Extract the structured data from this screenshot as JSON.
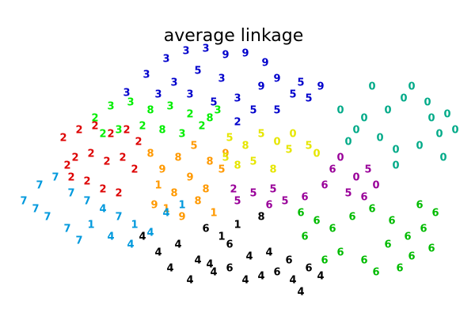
{
  "chart_data": {
    "type": "scatter",
    "title": "average linkage",
    "xlim": [
      0,
      600
    ],
    "ylim": [
      0,
      400
    ],
    "series": [
      {
        "color": "#0000cc",
        "x": [
          160,
          185,
          210,
          235,
          260,
          285,
          310,
          335,
          350,
          370,
          390,
          405,
          220,
          250,
          280,
          300,
          320,
          300,
          350,
          240,
          200,
          270,
          330,
          380
        ],
        "values": [
          282,
          305,
          325,
          335,
          338,
          330,
          332,
          320,
          300,
          280,
          275,
          290,
          295,
          310,
          300,
          275,
          260,
          245,
          260,
          280,
          280,
          270,
          290,
          295
        ],
        "labels": [
          "3",
          "3",
          "3",
          "3",
          "3",
          "9",
          "9",
          "9",
          "9",
          "5",
          "5",
          "9",
          "3",
          "5",
          "3",
          "3",
          "5",
          "2",
          "5",
          "3",
          "3",
          "5",
          "9",
          "5"
        ]
      },
      {
        "color": "#00aa88",
        "x": [
          430,
          460,
          490,
          510,
          540,
          565,
          575,
          480,
          500,
          530,
          555,
          450,
          470,
          520,
          545,
          560,
          500,
          440
        ],
        "values": [
          260,
          250,
          260,
          275,
          270,
          255,
          235,
          225,
          210,
          215,
          230,
          235,
          290,
          290,
          250,
          200,
          190,
          220
        ],
        "labels": [
          "0",
          "0",
          "0",
          "0",
          "0",
          "0",
          "0",
          "0",
          "0",
          "0",
          "0",
          "0",
          "0",
          "0",
          "0",
          "0",
          "0",
          "0"
        ]
      },
      {
        "color": "#00ee00",
        "x": [
          120,
          140,
          165,
          190,
          215,
          240,
          265,
          150,
          180,
          205,
          230,
          255,
          275,
          130
        ],
        "values": [
          250,
          265,
          270,
          260,
          265,
          255,
          250,
          235,
          240,
          235,
          230,
          240,
          260,
          230
        ],
        "labels": [
          "2",
          "3",
          "3",
          "8",
          "3",
          "2",
          "8",
          "3",
          "2",
          "8",
          "3",
          "2",
          "3",
          "2"
        ]
      },
      {
        "color": "#dd0000",
        "x": [
          80,
          100,
          120,
          140,
          160,
          175,
          95,
          115,
          135,
          155,
          170,
          90,
          110,
          130,
          150,
          85
        ],
        "values": [
          225,
          235,
          240,
          230,
          235,
          220,
          200,
          205,
          195,
          200,
          185,
          175,
          170,
          160,
          155,
          190
        ],
        "labels": [
          "2",
          "2",
          "2",
          "2",
          "2",
          "2",
          "2",
          "2",
          "2",
          "2",
          "2",
          "2",
          "2",
          "2",
          "2",
          "2"
        ]
      },
      {
        "color": "#ff9900",
        "x": [
          190,
          205,
          225,
          245,
          265,
          285,
          200,
          220,
          240,
          260,
          280,
          210,
          230,
          250,
          195,
          270
        ],
        "values": [
          205,
          185,
          200,
          215,
          195,
          205,
          165,
          155,
          175,
          160,
          185,
          135,
          125,
          145,
          140,
          130
        ],
        "labels": [
          "8",
          "9",
          "8",
          "5",
          "8",
          "9",
          "1",
          "8",
          "9",
          "8",
          "5",
          "1",
          "9",
          "8",
          "9",
          "1"
        ]
      },
      {
        "color": "#e6e600",
        "x": [
          290,
          310,
          330,
          350,
          370,
          390,
          300,
          320,
          345,
          365,
          400,
          285
        ],
        "values": [
          225,
          215,
          230,
          220,
          230,
          215,
          190,
          195,
          185,
          210,
          205,
          200
        ],
        "labels": [
          "5",
          "8",
          "5",
          "0",
          "0",
          "5",
          "8",
          "5",
          "8",
          "5",
          "0",
          "5"
        ]
      },
      {
        "color": "#990099",
        "x": [
          295,
          320,
          345,
          360,
          385,
          410,
          430,
          450,
          465,
          475,
          340,
          300,
          440,
          420,
          460
        ],
        "values": [
          160,
          155,
          160,
          145,
          150,
          165,
          200,
          175,
          185,
          165,
          140,
          145,
          155,
          185,
          150
        ],
        "labels": [
          "2",
          "5",
          "5",
          "5",
          "6",
          "6",
          "0",
          "0",
          "5",
          "0",
          "6",
          "5",
          "5",
          "6",
          "6"
        ]
      },
      {
        "color": "#0099dd",
        "x": [
          30,
          50,
          70,
          90,
          110,
          130,
          150,
          170,
          190,
          210,
          230,
          60,
          85,
          115,
          140,
          165,
          45,
          100
        ],
        "values": [
          145,
          165,
          175,
          155,
          145,
          135,
          125,
          115,
          105,
          130,
          140,
          125,
          110,
          115,
          100,
          90,
          135,
          95
        ],
        "labels": [
          "7",
          "7",
          "7",
          "7",
          "7",
          "4",
          "7",
          "1",
          "4",
          "4",
          "1",
          "7",
          "7",
          "1",
          "4",
          "4",
          "7",
          "7"
        ]
      },
      {
        "color": "#000000",
        "x": [
          180,
          200,
          225,
          250,
          270,
          290,
          310,
          330,
          350,
          370,
          390,
          405,
          215,
          240,
          265,
          290,
          315,
          340,
          365,
          300,
          280,
          330,
          260,
          380
        ],
        "values": [
          100,
          80,
          90,
          70,
          55,
          60,
          45,
          50,
          55,
          45,
          60,
          50,
          60,
          45,
          65,
          90,
          75,
          80,
          70,
          115,
          100,
          125,
          110,
          30
        ],
        "labels": [
          "4",
          "4",
          "4",
          "4",
          "4",
          "6",
          "4",
          "4",
          "6",
          "4",
          "6",
          "4",
          "4",
          "4",
          "4",
          "6",
          "4",
          "4",
          "6",
          "1",
          "1",
          "8",
          "6",
          "4"
        ]
      },
      {
        "color": "#00bb00",
        "x": [
          380,
          400,
          420,
          445,
          470,
          495,
          515,
          535,
          550,
          430,
          460,
          490,
          520,
          545,
          410,
          475,
          505,
          530,
          385
        ],
        "values": [
          130,
          120,
          110,
          125,
          135,
          120,
          100,
          110,
          130,
          80,
          70,
          90,
          75,
          85,
          70,
          55,
          60,
          140,
          100
        ],
        "labels": [
          "6",
          "6",
          "6",
          "6",
          "6",
          "6",
          "6",
          "6",
          "6",
          "6",
          "6",
          "6",
          "6",
          "6",
          "6",
          "6",
          "6",
          "6",
          "6"
        ]
      }
    ]
  }
}
